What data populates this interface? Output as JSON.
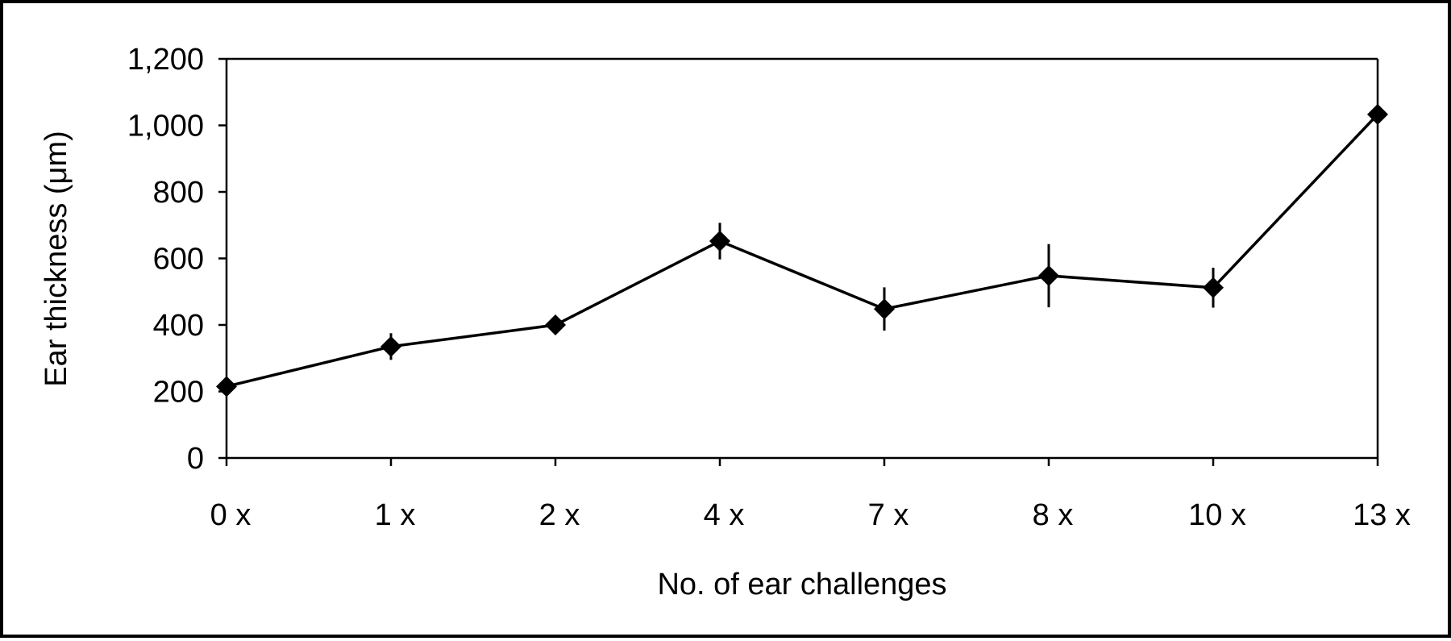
{
  "chart_data": {
    "type": "line",
    "xlabel": "No. of ear challenges",
    "ylabel": "Ear thickness (μm)",
    "categories": [
      "0 x",
      "1 x",
      "2 x",
      "4 x",
      "7 x",
      "8 x",
      "10 x",
      "13 x"
    ],
    "series": [
      {
        "values": [
          215,
          335,
          400,
          652,
          448,
          548,
          512,
          1033
        ],
        "error": [
          10,
          40,
          10,
          55,
          65,
          95,
          60,
          15
        ],
        "marker": "diamond",
        "color": "#000000"
      }
    ],
    "ylim": [
      0,
      1200
    ],
    "yticks": [
      0,
      200,
      400,
      600,
      800,
      1000,
      1200
    ],
    "ytick_labels": [
      "0",
      "200",
      "400",
      "600",
      "800",
      "1,000",
      "1,200"
    ],
    "grid": false,
    "legend": "none"
  }
}
